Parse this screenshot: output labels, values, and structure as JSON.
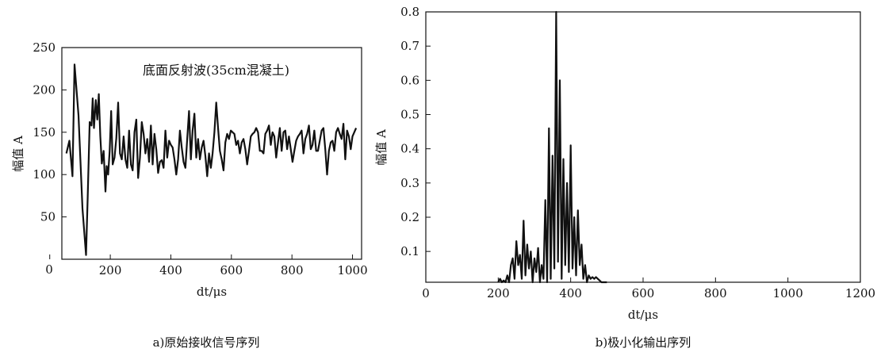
{
  "chart_data": [
    {
      "type": "line",
      "caption": "a)原始接收信号序列",
      "annotation": "底面反射波(35cm混凝土)",
      "ylabel": "幅值 A",
      "xlabel": "dt/μs",
      "xlim": [
        40,
        1030
      ],
      "ylim": [
        0,
        250
      ],
      "xticks": [
        0,
        200,
        400,
        600,
        800,
        1000
      ],
      "yticks": [
        50,
        100,
        150,
        200,
        250
      ],
      "x_origin_label": "0",
      "series": [
        {
          "x": [
            55,
            65,
            75,
            82,
            95,
            108,
            120,
            125,
            132,
            138,
            142,
            146,
            152,
            157,
            162,
            167,
            172,
            178,
            184,
            188,
            193,
            198,
            203,
            208,
            214,
            220,
            226,
            232,
            238,
            244,
            250,
            256,
            262,
            268,
            274,
            280,
            286,
            292,
            298,
            304,
            310,
            316,
            322,
            328,
            334,
            340,
            346,
            352,
            358,
            364,
            370,
            376,
            382,
            388,
            394,
            400,
            406,
            412,
            418,
            424,
            430,
            436,
            442,
            448,
            454,
            460,
            466,
            472,
            478,
            484,
            490,
            496,
            502,
            508,
            514,
            520,
            526,
            532,
            538,
            544,
            550,
            556,
            562,
            568,
            574,
            580,
            586,
            592,
            598,
            604,
            610,
            616,
            622,
            628,
            634,
            640,
            646,
            652,
            658,
            664,
            670,
            676,
            682,
            688,
            694,
            700,
            706,
            712,
            718,
            724,
            730,
            736,
            742,
            748,
            754,
            760,
            766,
            772,
            778,
            784,
            790,
            796,
            802,
            808,
            814,
            820,
            826,
            832,
            838,
            844,
            850,
            856,
            862,
            868,
            874,
            880,
            886,
            892,
            898,
            904,
            910,
            916,
            922,
            928,
            934,
            940,
            946,
            952,
            958,
            964,
            970,
            976,
            982,
            988,
            994,
            1000,
            1006,
            1012
          ],
          "y": [
            125,
            140,
            98,
            230,
            170,
            60,
            5,
            70,
            162,
            158,
            190,
            155,
            188,
            165,
            195,
            145,
            113,
            128,
            80,
            110,
            100,
            128,
            175,
            112,
            120,
            143,
            185,
            125,
            118,
            145,
            118,
            108,
            152,
            112,
            105,
            150,
            165,
            96,
            120,
            162,
            148,
            125,
            142,
            115,
            158,
            112,
            148,
            130,
            102,
            115,
            117,
            108,
            152,
            120,
            140,
            135,
            132,
            118,
            100,
            118,
            152,
            132,
            115,
            108,
            142,
            175,
            118,
            152,
            172,
            120,
            142,
            118,
            132,
            140,
            122,
            98,
            125,
            108,
            125,
            150,
            185,
            155,
            128,
            118,
            105,
            138,
            148,
            142,
            152,
            150,
            148,
            135,
            140,
            125,
            138,
            142,
            130,
            112,
            128,
            145,
            148,
            150,
            155,
            150,
            128,
            128,
            125,
            148,
            152,
            158,
            135,
            150,
            145,
            120,
            138,
            155,
            128,
            150,
            152,
            130,
            145,
            130,
            115,
            128,
            140,
            145,
            148,
            152,
            125,
            142,
            148,
            158,
            130,
            135,
            152,
            128,
            128,
            140,
            152,
            155,
            130,
            100,
            128,
            138,
            140,
            128,
            150,
            155,
            148,
            142,
            160,
            118,
            152,
            145,
            130,
            145,
            150,
            155
          ],
          "label_unused": ""
        }
      ]
    },
    {
      "type": "line",
      "caption": "b)极小化输出序列",
      "ylabel": "幅值 A",
      "xlabel": "dt/μs",
      "xlim": [
        0,
        1200
      ],
      "ylim": [
        0.01,
        0.8
      ],
      "xticks": [
        0,
        200,
        400,
        600,
        800,
        1000,
        1200
      ],
      "yticks": [
        0.1,
        0.2,
        0.3,
        0.4,
        0.5,
        0.6,
        0.7,
        0.8
      ],
      "series": [
        {
          "x": [
            200,
            205,
            210,
            215,
            220,
            225,
            230,
            235,
            240,
            245,
            250,
            255,
            260,
            265,
            270,
            275,
            280,
            285,
            290,
            295,
            300,
            305,
            310,
            315,
            320,
            325,
            330,
            335,
            340,
            345,
            350,
            355,
            360,
            365,
            370,
            375,
            380,
            385,
            390,
            395,
            400,
            405,
            410,
            415,
            420,
            425,
            430,
            435,
            440,
            445,
            450,
            455,
            460,
            465,
            470,
            475,
            480,
            485,
            490,
            495,
            500
          ],
          "y": [
            0.01,
            0.02,
            0.01,
            0.015,
            0.01,
            0.03,
            0.01,
            0.06,
            0.08,
            0.02,
            0.13,
            0.06,
            0.09,
            0.02,
            0.19,
            0.03,
            0.12,
            0.05,
            0.1,
            0.01,
            0.08,
            0.04,
            0.11,
            0.01,
            0.06,
            0.02,
            0.25,
            0.01,
            0.46,
            0.02,
            0.38,
            0.05,
            0.8,
            0.07,
            0.6,
            0.02,
            0.37,
            0.06,
            0.3,
            0.04,
            0.41,
            0.05,
            0.2,
            0.03,
            0.22,
            0.06,
            0.12,
            0.02,
            0.06,
            0.01,
            0.03,
            0.02,
            0.025,
            0.02,
            0.025,
            0.02,
            0.015,
            0.01,
            0.01,
            0.01,
            0.01
          ]
        }
      ]
    }
  ]
}
